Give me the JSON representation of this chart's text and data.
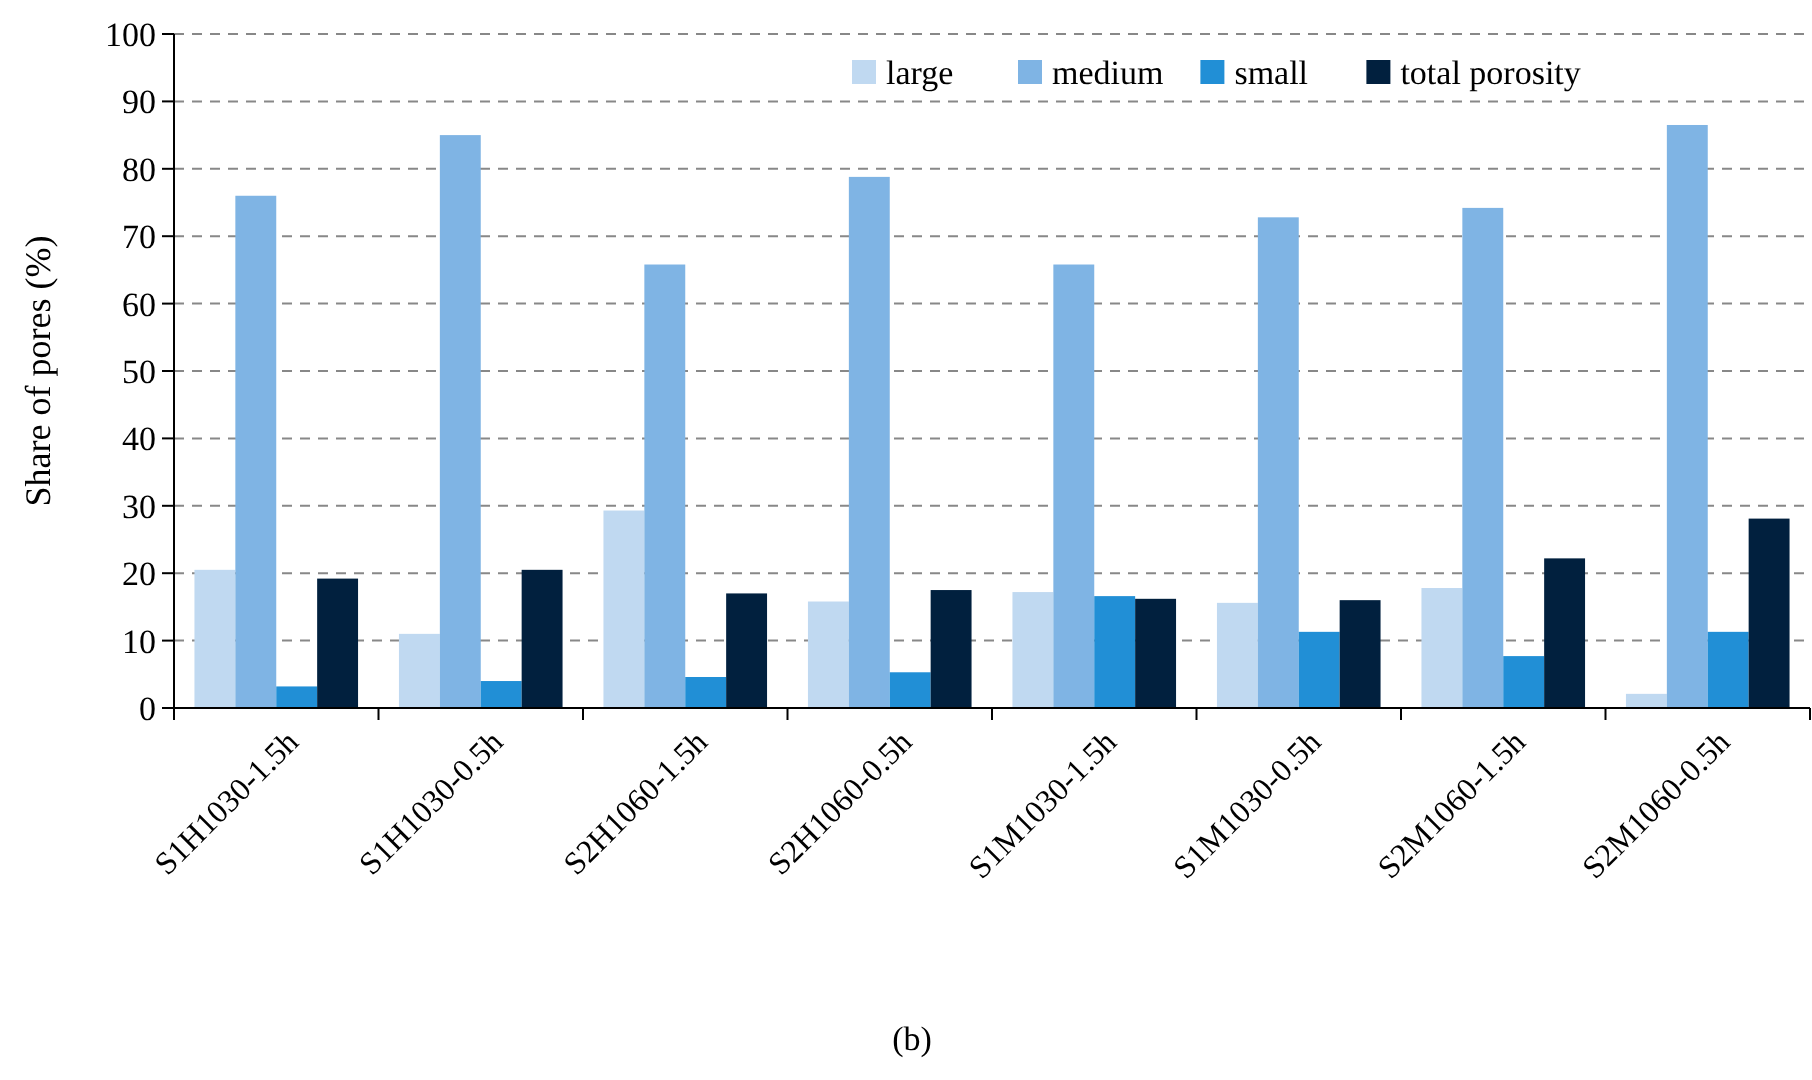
{
  "chart_data": {
    "type": "bar",
    "ylabel": "Share of pores (%)",
    "annotations": [
      "(b)"
    ],
    "categories": [
      "S1H1030-1.5h",
      "S1H1030-0.5h",
      "S2H1060-1.5h",
      "S2H1060-0.5h",
      "S1M1030-1.5h",
      "S1M1030-0.5h",
      "S2M1060-1.5h",
      "S2M1060-0.5h"
    ],
    "series": [
      {
        "name": "large",
        "color": "#c0d9f1",
        "values": [
          20.5,
          11,
          29.3,
          15.8,
          17.2,
          15.6,
          17.8,
          2.1
        ]
      },
      {
        "name": "medium",
        "color": "#7fb4e4",
        "values": [
          76,
          85,
          65.8,
          78.8,
          65.8,
          72.8,
          74.2,
          86.5
        ]
      },
      {
        "name": "small",
        "color": "#218fd6",
        "values": [
          3.2,
          4,
          4.6,
          5.3,
          16.6,
          11.3,
          7.7,
          11.3
        ]
      },
      {
        "name": "total porosity",
        "color": "#01203e",
        "values": [
          19.2,
          20.5,
          17,
          17.5,
          16.2,
          16,
          22.2,
          28.1
        ]
      }
    ],
    "ylim": [
      0,
      100
    ],
    "yticks": [
      0,
      10,
      20,
      30,
      40,
      50,
      60,
      70,
      80,
      90,
      100
    ],
    "grid": "y",
    "legend": "top"
  }
}
